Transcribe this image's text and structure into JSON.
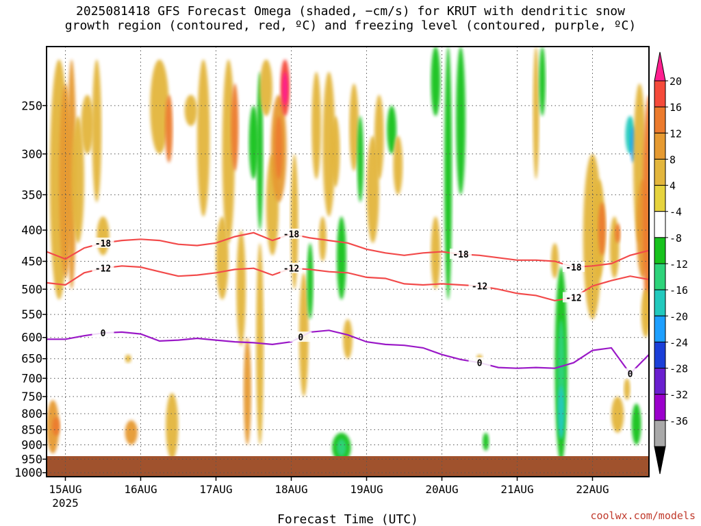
{
  "title_line1": "2025081418 GFS Forecast Omega (shaded, −cm/s) for KRUT with dendritic snow",
  "title_line2": "growth region (contoured, red, ºC) and freezing level (contoured, purple, ºC)",
  "credit": "coolwx.com/models",
  "chart_data": {
    "type": "heatmap",
    "title": "2025081418 GFS Forecast Omega (shaded, −cm/s) for KRUT with dendritic snow growth region (contoured, red, ºC) and freezing level (contoured, purple, ºC)",
    "xlabel": "Forecast Time (UTC)",
    "ylabel": "",
    "x_ticks": [
      "15AUG",
      "16AUG",
      "17AUG",
      "18AUG",
      "19AUG",
      "20AUG",
      "21AUG",
      "22AUG"
    ],
    "x_year_label": "2025",
    "x_range_hours": [
      -6,
      186
    ],
    "y_ticks": [
      250,
      300,
      350,
      400,
      450,
      500,
      550,
      600,
      650,
      700,
      750,
      800,
      850,
      900,
      950,
      1000
    ],
    "y_range_hPa": [
      200,
      1015
    ],
    "y_scale": "log-pressure",
    "grid": true,
    "colorbar": {
      "labels": [
        "20",
        "16",
        "12",
        "8",
        "4",
        "-4",
        "-8",
        "-12",
        "-16",
        "-20",
        "-24",
        "-28",
        "-32",
        "-36"
      ],
      "colors": [
        "#ff1f8f",
        "#f54a3a",
        "#ec7b2d",
        "#e69a31",
        "#e3b63d",
        "#e6d33e",
        "#ffffff",
        "#18c21d",
        "#2ed37a",
        "#22c9bd",
        "#1d9fff",
        "#1b3fd8",
        "#6a1fcf",
        "#9b00cc",
        "#a9a9a9",
        "#000000"
      ]
    },
    "series": [
      {
        "name": "-18",
        "color": "#f24a4a",
        "x_hours": [
          -6,
          0,
          6,
          12,
          18,
          24,
          30,
          36,
          42,
          48,
          54,
          60,
          66,
          72,
          78,
          84,
          90,
          96,
          102,
          108,
          114,
          120,
          126,
          132,
          138,
          144,
          150,
          156,
          162,
          168,
          174,
          180,
          186
        ],
        "y_hPa": [
          434,
          446,
          428,
          420,
          416,
          414,
          416,
          422,
          424,
          420,
          410,
          404,
          416,
          406,
          412,
          416,
          420,
          430,
          436,
          440,
          436,
          434,
          438,
          440,
          444,
          448,
          448,
          450,
          460,
          458,
          454,
          440,
          432
        ],
        "labels_at_hours": [
          12,
          72,
          126,
          162
        ]
      },
      {
        "name": "-12",
        "color": "#f24a4a",
        "x_hours": [
          -6,
          0,
          6,
          12,
          18,
          24,
          30,
          36,
          42,
          48,
          54,
          60,
          66,
          72,
          78,
          84,
          90,
          96,
          102,
          108,
          114,
          120,
          126,
          132,
          138,
          144,
          150,
          156,
          162,
          168,
          174,
          180,
          186
        ],
        "y_hPa": [
          488,
          492,
          470,
          462,
          458,
          460,
          468,
          476,
          474,
          470,
          464,
          462,
          474,
          462,
          464,
          468,
          470,
          478,
          480,
          490,
          492,
          490,
          492,
          494,
          500,
          508,
          512,
          522,
          516,
          494,
          484,
          476,
          482
        ],
        "labels_at_hours": [
          12,
          72,
          132,
          162
        ]
      },
      {
        "name": "0",
        "color": "#9a18c7",
        "x_hours": [
          -6,
          0,
          6,
          12,
          18,
          24,
          30,
          36,
          42,
          48,
          54,
          60,
          66,
          72,
          78,
          84,
          90,
          96,
          102,
          108,
          114,
          120,
          126,
          132,
          138,
          144,
          150,
          156,
          162,
          168,
          174,
          180,
          186
        ],
        "y_hPa": [
          604,
          604,
          596,
          590,
          588,
          592,
          608,
          606,
          602,
          606,
          610,
          612,
          616,
          610,
          588,
          584,
          594,
          610,
          616,
          618,
          624,
          640,
          652,
          660,
          672,
          674,
          672,
          674,
          660,
          630,
          624,
          688,
          640
        ],
        "labels_at_hours": [
          12,
          75,
          132,
          180
        ]
      }
    ]
  }
}
